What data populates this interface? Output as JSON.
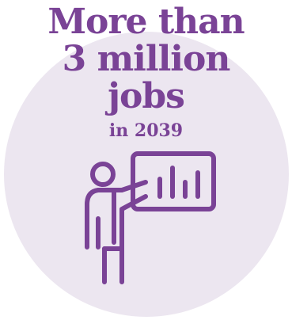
{
  "headline": {
    "line1": "More than",
    "line2": "3 million",
    "line3": "jobs",
    "line4": "in 2039"
  },
  "illustration": {
    "icon": "presenter-with-chart-icon"
  },
  "colors": {
    "text": "#7a4396",
    "circle": "#ece6f0",
    "background": "#ffffff"
  }
}
